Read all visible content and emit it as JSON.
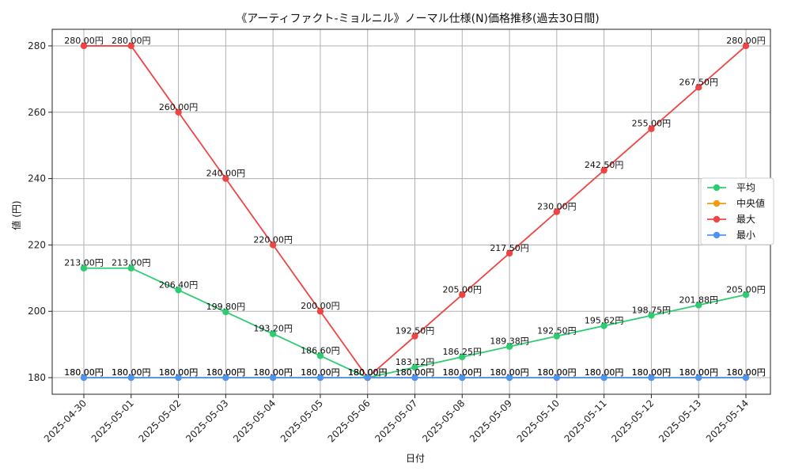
{
  "chart_data": {
    "type": "line",
    "title": "《アーティファクト-ミョルニル》ノーマル仕様(N)価格推移(過去30日間)",
    "xlabel": "日付",
    "ylabel": "値 (円)",
    "categories": [
      "2025-04-30",
      "2025-05-01",
      "2025-05-02",
      "2025-05-03",
      "2025-05-04",
      "2025-05-05",
      "2025-05-06",
      "2025-05-07",
      "2025-05-08",
      "2025-05-09",
      "2025-05-10",
      "2025-05-11",
      "2025-05-12",
      "2025-05-13",
      "2025-05-14"
    ],
    "ylim": [
      175,
      285
    ],
    "yticks": [
      180,
      200,
      220,
      240,
      260,
      280
    ],
    "grid": true,
    "legend_position": "right",
    "label_suffix": "円",
    "series": [
      {
        "name": "平均",
        "color": "#2ecc71",
        "values": [
          213.0,
          213.0,
          206.4,
          199.8,
          193.2,
          186.6,
          180.0,
          183.12,
          186.25,
          189.38,
          192.5,
          195.62,
          198.75,
          201.88,
          205.0
        ]
      },
      {
        "name": "中央値",
        "color": "#f39c12",
        "values": [
          180.0,
          180.0,
          180.0,
          180.0,
          180.0,
          180.0,
          180.0,
          180.0,
          180.0,
          180.0,
          180.0,
          180.0,
          180.0,
          180.0,
          180.0
        ]
      },
      {
        "name": "最大",
        "color": "#ef4444",
        "values": [
          280.0,
          280.0,
          260.0,
          240.0,
          220.0,
          200.0,
          180.0,
          192.5,
          205.0,
          217.5,
          230.0,
          242.5,
          255.0,
          267.5,
          280.0
        ]
      },
      {
        "name": "最小",
        "color": "#4f94f0",
        "values": [
          180.0,
          180.0,
          180.0,
          180.0,
          180.0,
          180.0,
          180.0,
          180.0,
          180.0,
          180.0,
          180.0,
          180.0,
          180.0,
          180.0,
          180.0
        ]
      }
    ]
  }
}
